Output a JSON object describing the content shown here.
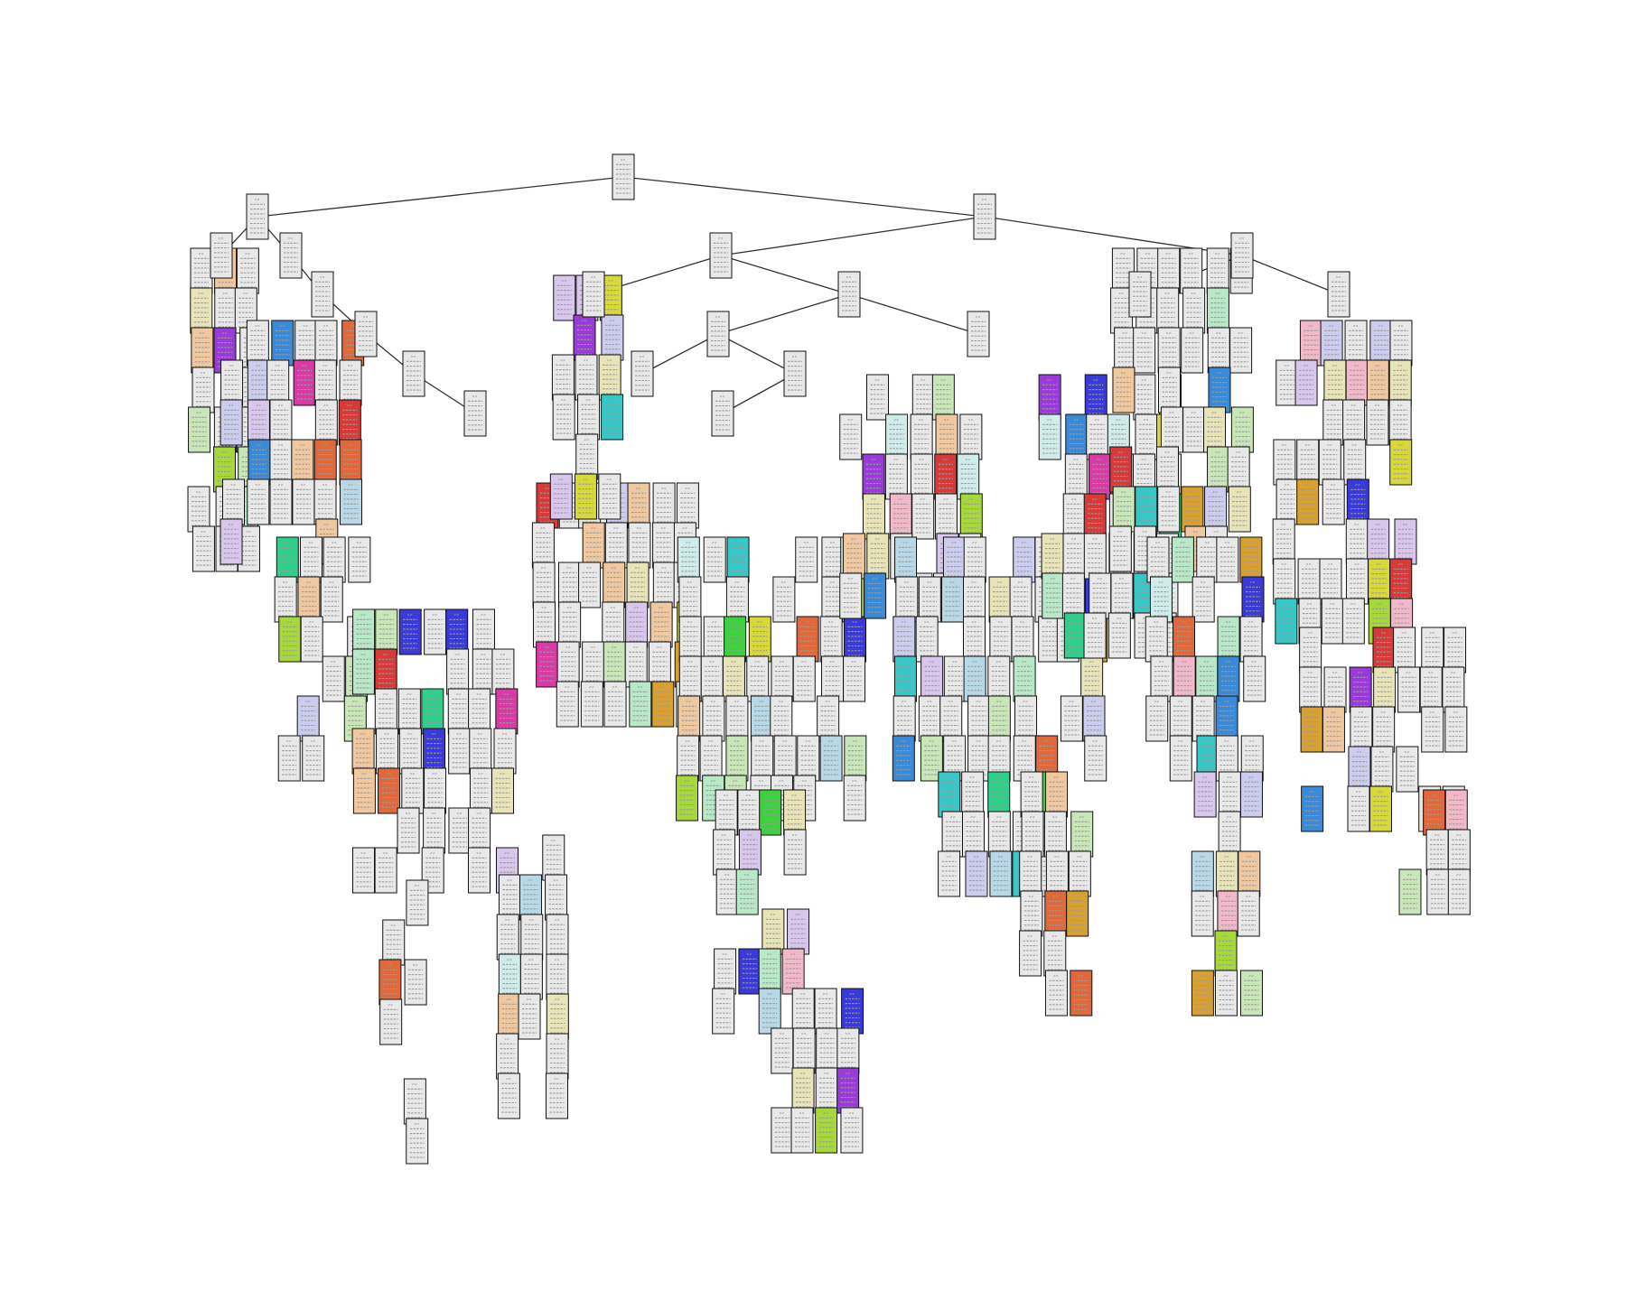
{
  "diagram": {
    "type": "decision-tree",
    "node_text_legible": false,
    "class_colors": [
      "#e8e8e8",
      "#e8e4b8",
      "#f0c8a0",
      "#c8e6b8",
      "#d0ecea",
      "#cccdee",
      "#b8e8c8",
      "#d8c6ec",
      "#36c7c7",
      "#3dd23d",
      "#3a3ad8",
      "#d83a3a",
      "#e0683a",
      "#d8d838",
      "#d8a030",
      "#3a8ad8",
      "#a6d83a",
      "#2ecf8a",
      "#d83aa6",
      "#9a3ad8",
      "#b8d8e8",
      "#f0b8c8"
    ]
  }
}
